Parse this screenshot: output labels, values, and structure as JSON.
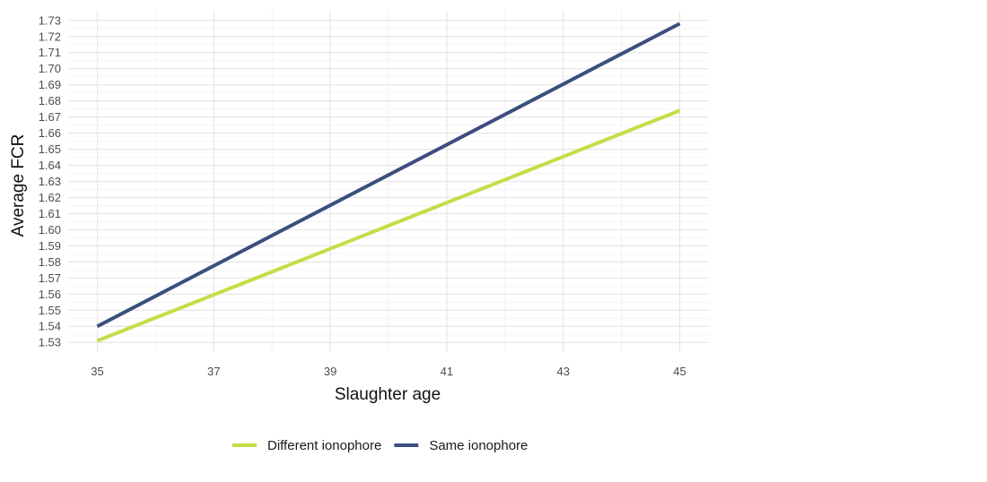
{
  "chart_data": {
    "type": "line",
    "xlabel": "Slaughter age",
    "ylabel": "Average FCR",
    "xlim": [
      34.5,
      45.5
    ],
    "ylim": [
      1.524,
      1.736
    ],
    "x_ticks": [
      35,
      37,
      39,
      41,
      43,
      45
    ],
    "x_tick_labels": [
      "35",
      "37",
      "39",
      "41",
      "43",
      "45"
    ],
    "y_ticks": [
      1.53,
      1.54,
      1.55,
      1.56,
      1.57,
      1.58,
      1.59,
      1.6,
      1.61,
      1.62,
      1.63,
      1.64,
      1.65,
      1.66,
      1.67,
      1.68,
      1.69,
      1.7,
      1.71,
      1.72,
      1.73
    ],
    "y_tick_labels": [
      "1.53",
      "1.54",
      "1.55",
      "1.56",
      "1.57",
      "1.58",
      "1.59",
      "1.60",
      "1.61",
      "1.62",
      "1.63",
      "1.64",
      "1.65",
      "1.66",
      "1.67",
      "1.68",
      "1.69",
      "1.70",
      "1.71",
      "1.72",
      "1.73"
    ],
    "grid": true,
    "legend_position": "bottom",
    "series": [
      {
        "name": "Different ionophore",
        "color": "#c5dd47",
        "x": [
          35,
          45
        ],
        "y": [
          1.531,
          1.674
        ]
      },
      {
        "name": "Same ionophore",
        "color": "#3b4f7e",
        "x": [
          35,
          45
        ],
        "y": [
          1.54,
          1.728
        ]
      }
    ]
  }
}
